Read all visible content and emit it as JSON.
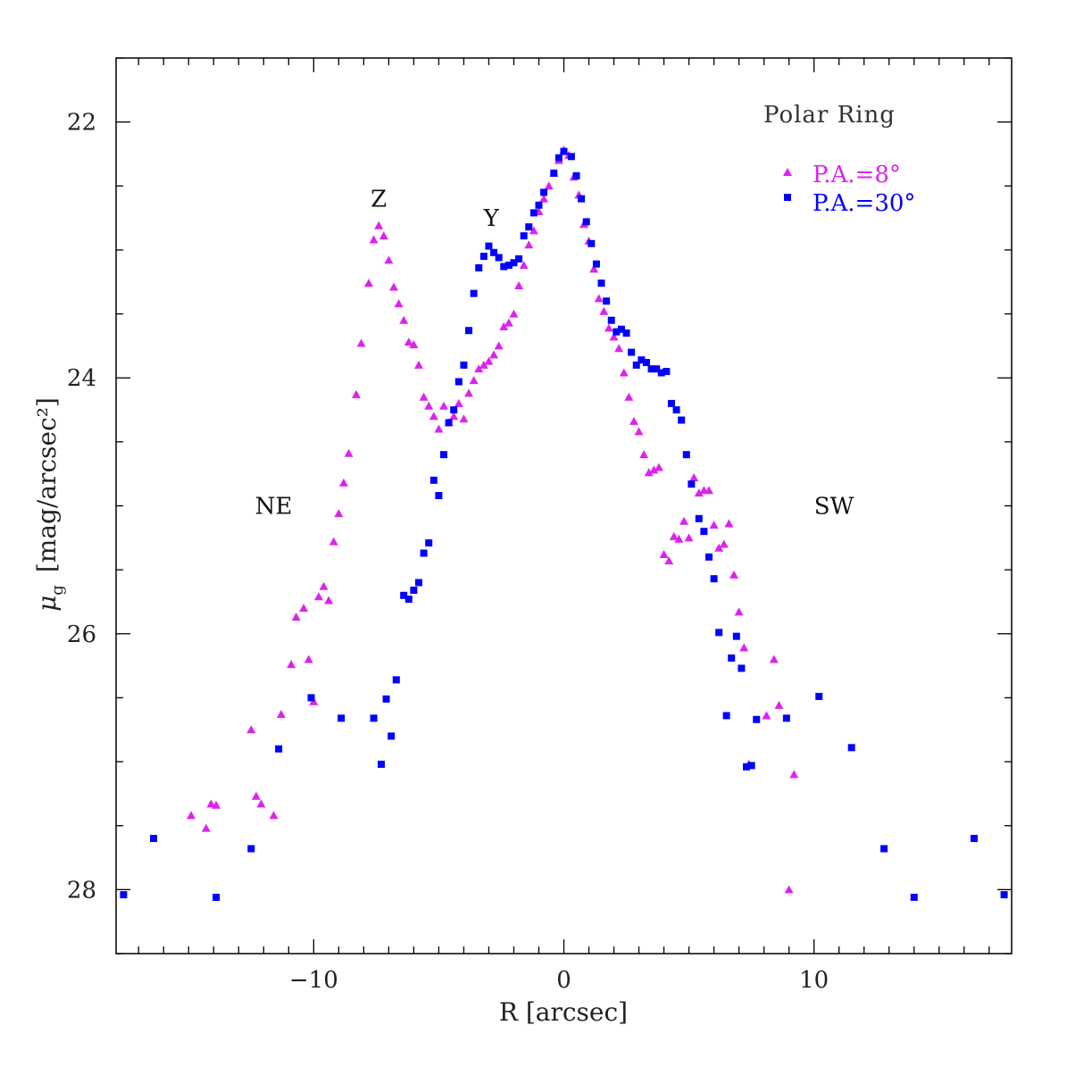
{
  "chart_data": {
    "type": "scatter",
    "title": "Polar Ring",
    "xlabel": "R [arcsec]",
    "ylabel_symbol": "μ",
    "ylabel_sub": "g",
    "ylabel_unit": "[mag/arcsec²]",
    "xlim": [
      -17.9,
      17.9
    ],
    "ylim": [
      28.5,
      21.5
    ],
    "x_ticks": [
      -10,
      0,
      10
    ],
    "x_tick_labels": [
      "−10",
      "0",
      "10"
    ],
    "y_ticks": [
      22,
      24,
      26,
      28
    ],
    "y_tick_labels": [
      "22",
      "24",
      "26",
      "28"
    ],
    "annotations": [
      {
        "text": "Z",
        "x": -7.4,
        "y": 22.6
      },
      {
        "text": "Y",
        "x": -2.9,
        "y": 22.75
      },
      {
        "text": "NE",
        "x": -11.6,
        "y": 25.0
      },
      {
        "text": "SW",
        "x": 10.8,
        "y": 25.0
      }
    ],
    "series": [
      {
        "name": "P.A.=8°",
        "marker": "triangle",
        "color": "#dd22ee",
        "points": [
          [
            -14.9,
            27.42
          ],
          [
            -14.3,
            27.52
          ],
          [
            -14.1,
            27.33
          ],
          [
            -13.9,
            27.34
          ],
          [
            -12.5,
            26.75
          ],
          [
            -12.3,
            27.27
          ],
          [
            -12.1,
            27.33
          ],
          [
            -11.6,
            27.42
          ],
          [
            -11.3,
            26.63
          ],
          [
            -10.9,
            26.24
          ],
          [
            -10.7,
            25.87
          ],
          [
            -10.4,
            25.8
          ],
          [
            -10.2,
            26.2
          ],
          [
            -10.0,
            26.53
          ],
          [
            -9.8,
            25.71
          ],
          [
            -9.6,
            25.63
          ],
          [
            -9.4,
            25.74
          ],
          [
            -9.2,
            25.28
          ],
          [
            -9.0,
            25.06
          ],
          [
            -8.8,
            24.82
          ],
          [
            -8.6,
            24.59
          ],
          [
            -8.3,
            24.13
          ],
          [
            -8.1,
            23.73
          ],
          [
            -7.8,
            23.26
          ],
          [
            -7.6,
            22.92
          ],
          [
            -7.4,
            22.81
          ],
          [
            -7.2,
            22.89
          ],
          [
            -7.0,
            23.08
          ],
          [
            -6.8,
            23.29
          ],
          [
            -6.6,
            23.42
          ],
          [
            -6.4,
            23.55
          ],
          [
            -6.2,
            23.72
          ],
          [
            -6.0,
            23.74
          ],
          [
            -5.8,
            23.9
          ],
          [
            -5.6,
            24.15
          ],
          [
            -5.4,
            24.22
          ],
          [
            -5.2,
            24.3
          ],
          [
            -5.0,
            24.4
          ],
          [
            -4.8,
            24.22
          ],
          [
            -4.6,
            24.35
          ],
          [
            -4.4,
            24.3
          ],
          [
            -4.2,
            24.2
          ],
          [
            -4.0,
            24.32
          ],
          [
            -3.8,
            24.12
          ],
          [
            -3.6,
            24.02
          ],
          [
            -3.4,
            23.93
          ],
          [
            -3.2,
            23.9
          ],
          [
            -3.0,
            23.87
          ],
          [
            -2.8,
            23.82
          ],
          [
            -2.6,
            23.75
          ],
          [
            -2.4,
            23.6
          ],
          [
            -2.2,
            23.57
          ],
          [
            -2.0,
            23.5
          ],
          [
            -1.8,
            23.28
          ],
          [
            -1.6,
            23.12
          ],
          [
            -1.4,
            22.96
          ],
          [
            -1.2,
            22.85
          ],
          [
            -1.0,
            22.7
          ],
          [
            -0.8,
            22.6
          ],
          [
            -0.6,
            22.5
          ],
          [
            -0.4,
            22.4
          ],
          [
            -0.2,
            22.3
          ],
          [
            0.0,
            22.22
          ],
          [
            0.2,
            22.26
          ],
          [
            0.4,
            22.43
          ],
          [
            0.6,
            22.57
          ],
          [
            0.8,
            22.8
          ],
          [
            1.0,
            22.93
          ],
          [
            1.2,
            23.15
          ],
          [
            1.4,
            23.38
          ],
          [
            1.6,
            23.48
          ],
          [
            1.8,
            23.61
          ],
          [
            2.0,
            23.68
          ],
          [
            2.2,
            23.77
          ],
          [
            2.4,
            23.96
          ],
          [
            2.6,
            24.15
          ],
          [
            2.8,
            24.34
          ],
          [
            3.0,
            24.42
          ],
          [
            3.2,
            24.6
          ],
          [
            3.4,
            24.74
          ],
          [
            3.6,
            24.72
          ],
          [
            3.8,
            24.7
          ],
          [
            4.0,
            25.38
          ],
          [
            4.2,
            25.43
          ],
          [
            4.4,
            25.24
          ],
          [
            4.6,
            25.26
          ],
          [
            4.8,
            25.12
          ],
          [
            5.0,
            25.25
          ],
          [
            5.2,
            24.78
          ],
          [
            5.4,
            24.9
          ],
          [
            5.6,
            24.88
          ],
          [
            5.8,
            24.88
          ],
          [
            6.0,
            25.15
          ],
          [
            6.2,
            25.33
          ],
          [
            6.4,
            25.3
          ],
          [
            6.6,
            25.14
          ],
          [
            6.8,
            25.54
          ],
          [
            7.0,
            25.83
          ],
          [
            7.2,
            26.11
          ],
          [
            7.4,
            27.02
          ],
          [
            8.1,
            26.64
          ],
          [
            8.4,
            26.2
          ],
          [
            8.6,
            26.56
          ],
          [
            9.0,
            28.0
          ],
          [
            9.2,
            27.1
          ]
        ]
      },
      {
        "name": "P.A.=30°",
        "marker": "square",
        "color": "#0000ff",
        "points": [
          [
            -17.6,
            28.04
          ],
          [
            -16.4,
            27.6
          ],
          [
            -13.9,
            28.06
          ],
          [
            -12.5,
            27.68
          ],
          [
            -11.4,
            26.9
          ],
          [
            -10.1,
            26.5
          ],
          [
            -8.9,
            26.66
          ],
          [
            -7.6,
            26.66
          ],
          [
            -7.3,
            27.02
          ],
          [
            -7.1,
            26.51
          ],
          [
            -6.9,
            26.8
          ],
          [
            -6.7,
            26.36
          ],
          [
            -6.4,
            25.7
          ],
          [
            -6.2,
            25.73
          ],
          [
            -6.0,
            25.66
          ],
          [
            -5.8,
            25.6
          ],
          [
            -5.6,
            25.37
          ],
          [
            -5.4,
            25.29
          ],
          [
            -5.2,
            24.8
          ],
          [
            -5.0,
            24.92
          ],
          [
            -4.8,
            24.6
          ],
          [
            -4.6,
            24.35
          ],
          [
            -4.4,
            24.25
          ],
          [
            -4.2,
            24.03
          ],
          [
            -4.0,
            23.9
          ],
          [
            -3.8,
            23.63
          ],
          [
            -3.6,
            23.34
          ],
          [
            -3.4,
            23.14
          ],
          [
            -3.2,
            23.05
          ],
          [
            -3.0,
            22.97
          ],
          [
            -2.8,
            23.02
          ],
          [
            -2.6,
            23.06
          ],
          [
            -2.4,
            23.13
          ],
          [
            -2.2,
            23.12
          ],
          [
            -2.0,
            23.1
          ],
          [
            -1.8,
            23.07
          ],
          [
            -1.6,
            22.89
          ],
          [
            -1.4,
            22.82
          ],
          [
            -1.2,
            22.71
          ],
          [
            -1.0,
            22.65
          ],
          [
            -0.8,
            22.55
          ],
          [
            -0.4,
            22.4
          ],
          [
            -0.2,
            22.28
          ],
          [
            0.0,
            22.23
          ],
          [
            0.3,
            22.27
          ],
          [
            0.5,
            22.42
          ],
          [
            0.7,
            22.6
          ],
          [
            0.9,
            22.78
          ],
          [
            1.1,
            22.95
          ],
          [
            1.3,
            23.11
          ],
          [
            1.5,
            23.26
          ],
          [
            1.7,
            23.4
          ],
          [
            1.9,
            23.55
          ],
          [
            2.1,
            23.64
          ],
          [
            2.3,
            23.62
          ],
          [
            2.5,
            23.65
          ],
          [
            2.7,
            23.8
          ],
          [
            2.9,
            23.9
          ],
          [
            3.1,
            23.86
          ],
          [
            3.3,
            23.88
          ],
          [
            3.5,
            23.93
          ],
          [
            3.7,
            23.93
          ],
          [
            3.9,
            23.96
          ],
          [
            4.1,
            23.95
          ],
          [
            4.3,
            24.2
          ],
          [
            4.5,
            24.25
          ],
          [
            4.7,
            24.33
          ],
          [
            4.9,
            24.6
          ],
          [
            5.1,
            24.83
          ],
          [
            5.4,
            25.1
          ],
          [
            5.6,
            25.2
          ],
          [
            5.8,
            25.4
          ],
          [
            6.0,
            25.57
          ],
          [
            6.2,
            25.99
          ],
          [
            6.5,
            26.64
          ],
          [
            6.7,
            26.19
          ],
          [
            6.9,
            26.02
          ],
          [
            7.1,
            26.27
          ],
          [
            7.3,
            27.04
          ],
          [
            7.5,
            27.03
          ],
          [
            7.7,
            26.67
          ],
          [
            8.9,
            26.66
          ],
          [
            10.2,
            26.49
          ],
          [
            11.5,
            26.89
          ],
          [
            12.8,
            27.68
          ],
          [
            14.0,
            28.06
          ],
          [
            16.4,
            27.6
          ],
          [
            17.6,
            28.04
          ]
        ]
      }
    ]
  }
}
